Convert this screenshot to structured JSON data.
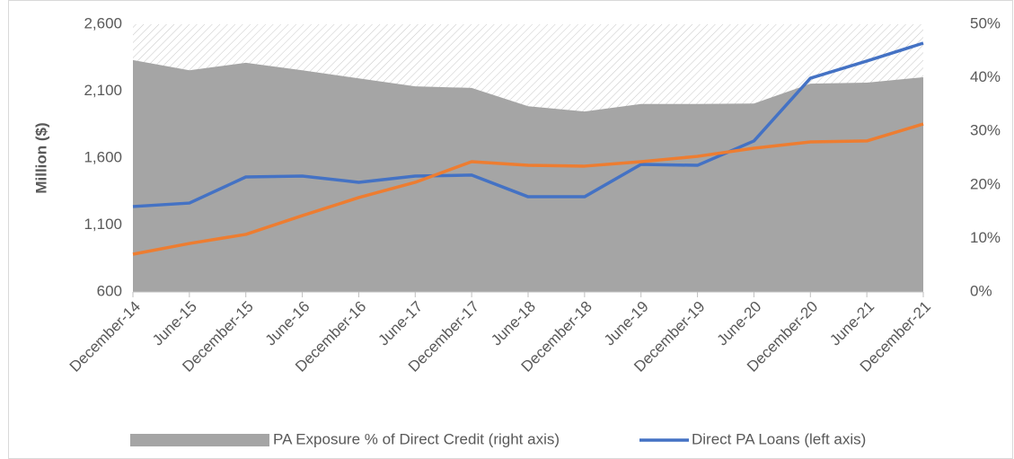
{
  "chart_data": {
    "type": "line",
    "y_label": "Million ($)",
    "categories": [
      "December-14",
      "June-15",
      "December-15",
      "June-16",
      "December-16",
      "June-17",
      "December-17",
      "June-18",
      "December-18",
      "June-19",
      "December-19",
      "June-20",
      "December-20",
      "June-21",
      "December-21"
    ],
    "ylim": [
      600,
      2600
    ],
    "yticks": [
      600,
      {
        "value": 1100,
        "label": "1,100"
      },
      {
        "value": 1600,
        "label": "1,600"
      },
      {
        "value": 2100,
        "label": "2,100"
      },
      {
        "value": 2600,
        "label": "2,600"
      }
    ],
    "y2lim": [
      0,
      50
    ],
    "y2ticks": [
      {
        "value": 0,
        "label": "0%"
      },
      {
        "value": 10,
        "label": "10%"
      },
      {
        "value": 20,
        "label": "20%"
      },
      {
        "value": 30,
        "label": "30%"
      },
      {
        "value": 40,
        "label": "40%"
      },
      {
        "value": 50,
        "label": "50%"
      }
    ],
    "series": [
      {
        "name": "PA Exposure % of Direct Credit (right axis)",
        "kind": "area",
        "axis": "y2",
        "color": "#a5a5a5",
        "values": [
          43.3,
          41.4,
          42.8,
          41.4,
          39.9,
          38.4,
          38.1,
          34.7,
          33.7,
          35.1,
          35.1,
          35.2,
          38.9,
          39.1,
          40.1
        ]
      },
      {
        "name": "Direct PA Loans (left axis)",
        "kind": "line",
        "color": "#4472c4",
        "values": [
          1238,
          1264,
          1459,
          1466,
          1419,
          1466,
          1473,
          1311,
          1311,
          1553,
          1546,
          1728,
          2197,
          2325,
          2459
        ]
      },
      {
        "kind": "line",
        "color": "#ed7d31",
        "values": [
          882,
          962,
          1030,
          1170,
          1305,
          1419,
          1573,
          1546,
          1540,
          1573,
          1613,
          1674,
          1721,
          1728,
          1855
        ]
      }
    ]
  }
}
